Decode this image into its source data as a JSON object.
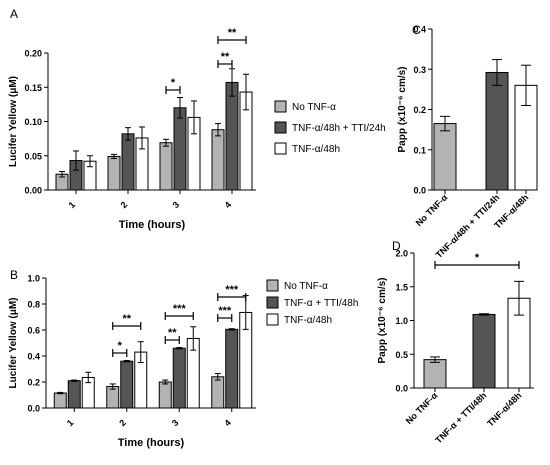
{
  "chart_data": [
    {
      "panel": "A",
      "type": "bar",
      "xlabel": "Time (hours)",
      "ylabel": "Lucifer Yellow (μM)",
      "ylim": [
        0,
        0.2
      ],
      "yticks": [
        "0.00",
        "0.05",
        "0.10",
        "0.15",
        "0.20"
      ],
      "categories": [
        "1",
        "2",
        "3",
        "4"
      ],
      "legend_position": "right",
      "series": [
        {
          "name": "No TNF-α",
          "color": "#b3b3b3",
          "values": [
            0.023,
            0.049,
            0.069,
            0.088
          ],
          "errors": [
            0.004,
            0.003,
            0.005,
            0.009
          ]
        },
        {
          "name": "TNF-α/48h + TTI/24h",
          "color": "#555555",
          "values": [
            0.043,
            0.082,
            0.12,
            0.157
          ],
          "errors": [
            0.014,
            0.009,
            0.015,
            0.02
          ]
        },
        {
          "name": "TNF-α/48h",
          "color": "#ffffff",
          "values": [
            0.042,
            0.076,
            0.106,
            0.143
          ],
          "errors": [
            0.008,
            0.016,
            0.024,
            0.026
          ]
        }
      ],
      "significance": [
        {
          "category": "3",
          "label": "*",
          "from": "No TNF-α",
          "to": "TNF-α/48h + TTI/24h"
        },
        {
          "category": "4",
          "label": "**",
          "from": "No TNF-α",
          "to": "TNF-α/48h + TTI/24h"
        },
        {
          "category": "4",
          "label": "**",
          "from": "No TNF-α",
          "to": "TNF-α/48h"
        }
      ]
    },
    {
      "panel": "B",
      "type": "bar",
      "xlabel": "Time (hours)",
      "ylabel": "Lucifer Yellow (μM)",
      "ylim": [
        0,
        1.0
      ],
      "yticks": [
        "0.0",
        "0.2",
        "0.4",
        "0.6",
        "0.8",
        "1.0"
      ],
      "categories": [
        "1",
        "2",
        "3",
        "4"
      ],
      "legend_position": "right",
      "series": [
        {
          "name": "No TNF-α",
          "color": "#b3b3b3",
          "values": [
            0.115,
            0.165,
            0.2,
            0.24
          ],
          "errors": [
            0.005,
            0.02,
            0.015,
            0.025
          ]
        },
        {
          "name": "TNF-α + TTI/48h",
          "color": "#555555",
          "values": [
            0.21,
            0.36,
            0.46,
            0.605
          ],
          "errors": [
            0.005,
            0.005,
            0.005,
            0.005
          ]
        },
        {
          "name": "TNF-α/48h",
          "color": "#ffffff",
          "values": [
            0.235,
            0.43,
            0.535,
            0.735
          ],
          "errors": [
            0.04,
            0.08,
            0.09,
            0.13
          ]
        }
      ],
      "significance": [
        {
          "category": "2",
          "label": "*",
          "from": "No TNF-α",
          "to": "TNF-α + TTI/48h"
        },
        {
          "category": "2",
          "label": "**",
          "from": "No TNF-α",
          "to": "TNF-α/48h"
        },
        {
          "category": "3",
          "label": "**",
          "from": "No TNF-α",
          "to": "TNF-α + TTI/48h"
        },
        {
          "category": "3",
          "label": "***",
          "from": "No TNF-α",
          "to": "TNF-α/48h"
        },
        {
          "category": "4",
          "label": "***",
          "from": "No TNF-α",
          "to": "TNF-α + TTI/48h"
        },
        {
          "category": "4",
          "label": "***",
          "from": "No TNF-α",
          "to": "TNF-α/48h"
        }
      ]
    },
    {
      "panel": "C",
      "type": "bar",
      "xlabel": "",
      "ylabel": "Papp (x10⁻⁶ cm/s)",
      "ylim": [
        0,
        0.4
      ],
      "yticks": [
        "0.0",
        "0.1",
        "0.2",
        "0.3",
        "0.4"
      ],
      "categories": [
        "No TNF-α",
        "TNF-α/48h + TTI/24h",
        "TNF-α/48h"
      ],
      "colors": [
        "#b3b3b3",
        "#555555",
        "#ffffff"
      ],
      "values": [
        0.165,
        0.292,
        0.26
      ],
      "errors": [
        0.018,
        0.032,
        0.05
      ],
      "significance": []
    },
    {
      "panel": "D",
      "type": "bar",
      "xlabel": "",
      "ylabel": "Papp (x10⁻⁶ cm/s)",
      "ylim": [
        0,
        2.0
      ],
      "yticks": [
        "0.0",
        "0.5",
        "1.0",
        "1.5",
        "2.0"
      ],
      "categories": [
        "No TNF-α",
        "TNF-α + TTI/48h",
        "TNF-α/48h"
      ],
      "colors": [
        "#b3b3b3",
        "#555555",
        "#ffffff"
      ],
      "values": [
        0.42,
        1.09,
        1.33
      ],
      "errors": [
        0.04,
        0.01,
        0.25
      ],
      "significance": [
        {
          "label": "*",
          "from": "No TNF-α",
          "to": "TNF-α/48h"
        }
      ]
    }
  ]
}
